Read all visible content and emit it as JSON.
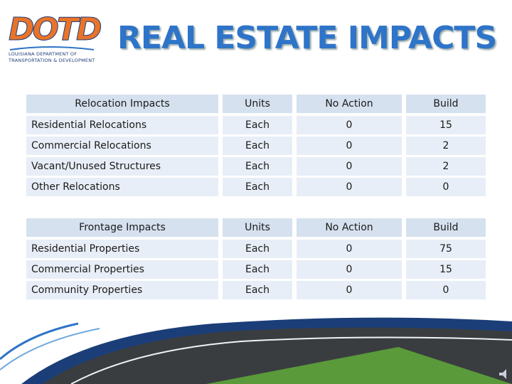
{
  "logo": {
    "mark": "DOTD",
    "line1": "LOUISIANA DEPARTMENT OF",
    "line2": "TRANSPORTATION & DEVELOPMENT"
  },
  "title": "REAL ESTATE IMPACTS",
  "tables": [
    {
      "header": [
        "Relocation Impacts",
        "Units",
        "No Action",
        "Build"
      ],
      "rows": [
        [
          "Residential Relocations",
          "Each",
          0,
          15
        ],
        [
          "Commercial Relocations",
          "Each",
          0,
          2
        ],
        [
          "Vacant/Unused Structures",
          "Each",
          0,
          2
        ],
        [
          "Other Relocations",
          "Each",
          0,
          0
        ]
      ]
    },
    {
      "header": [
        "Frontage Impacts",
        "Units",
        "No Action",
        "Build"
      ],
      "rows": [
        [
          "Residential Properties",
          "Each",
          0,
          75
        ],
        [
          "Commercial Properties",
          "Each",
          0,
          15
        ],
        [
          "Community Properties",
          "Each",
          0,
          0
        ]
      ]
    }
  ]
}
